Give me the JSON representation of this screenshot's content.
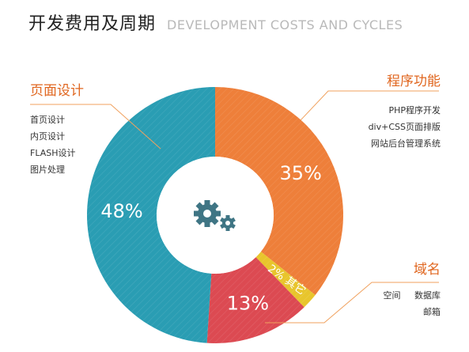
{
  "header": {
    "title": "开发费用及周期",
    "subtitle": "DEVELOPMENT COSTS AND CYCLES"
  },
  "sections": {
    "page_design": {
      "heading": "页面设计",
      "items": [
        "首页设计",
        "内页设计",
        "FLASH设计",
        "图片处理"
      ]
    },
    "program": {
      "heading": "程序功能",
      "items": [
        "PHP程序开发",
        "div+CSS页面排版",
        "网站后台管理系统"
      ]
    },
    "domain": {
      "heading": "域名",
      "items": [
        "空间",
        "数据库",
        "邮箱"
      ]
    }
  },
  "chart_data": {
    "type": "pie",
    "donut": true,
    "categories": [
      "程序功能",
      "其它",
      "域名",
      "页面设计"
    ],
    "values": [
      35,
      2,
      13,
      48
    ],
    "value_labels": [
      "35%",
      "2% 其它",
      "13%",
      "48%"
    ],
    "center_icon": "gears-icon",
    "colors": [
      "#ee7f3a",
      "#e8c52c",
      "#dc4a52",
      "#2a9db3"
    ]
  }
}
